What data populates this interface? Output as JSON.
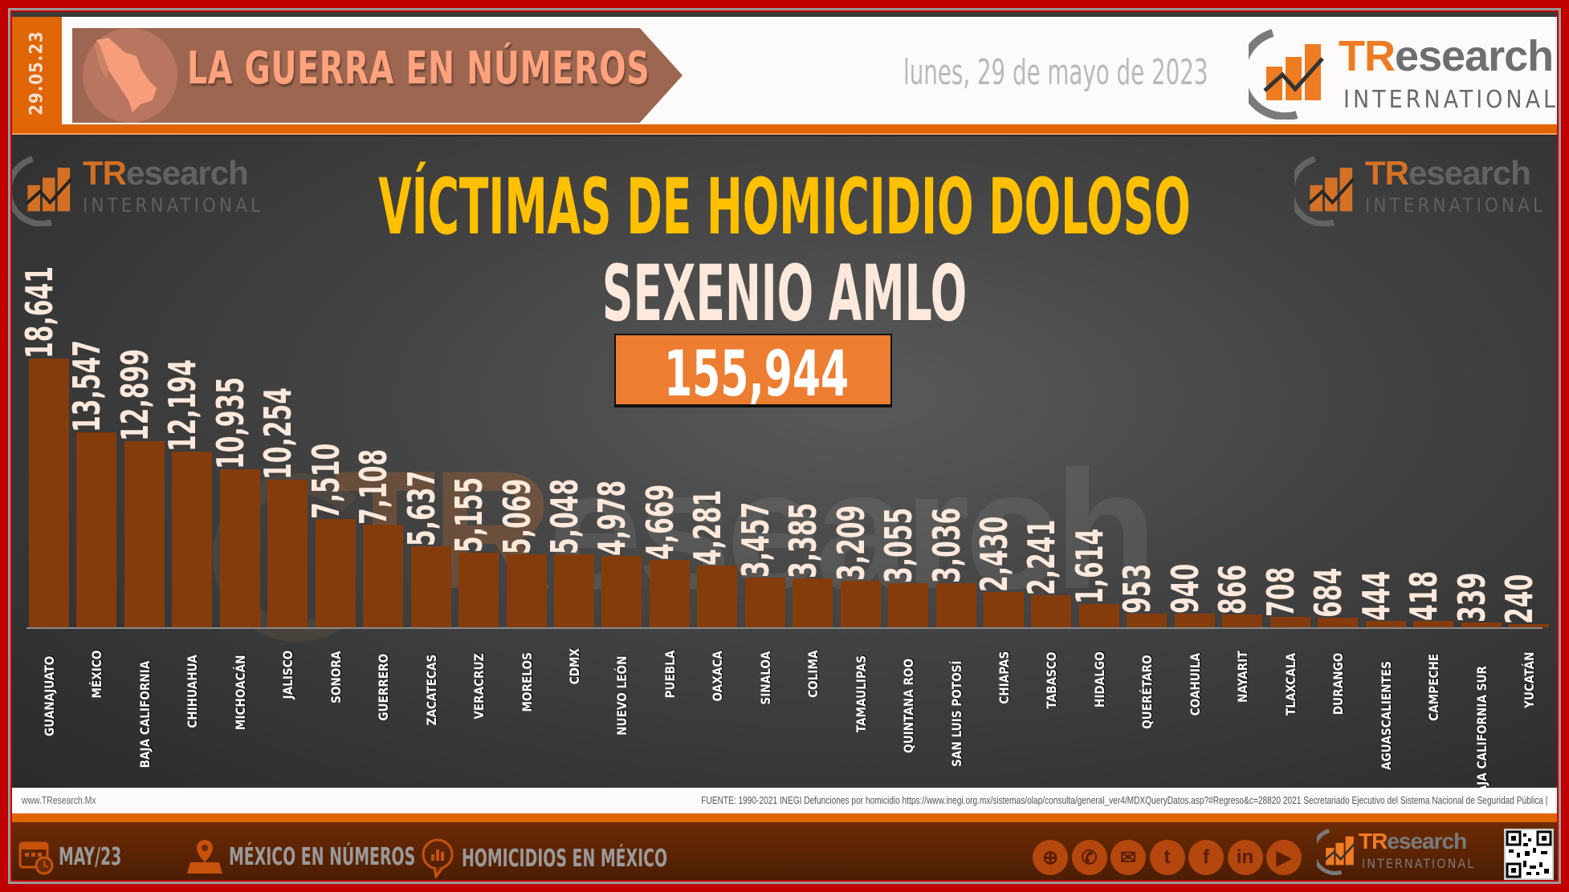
{
  "header": {
    "date_strip": "29.05.23",
    "banner_title": "LA GUERRA EN NÚMEROS",
    "date_long": "lunes, 29 de mayo de 2023",
    "logo": {
      "brand_tr": "TR",
      "brand_rest": "esearch",
      "sub": "INTERNATIONAL"
    }
  },
  "chart_area": {
    "title": "VÍCTIMAS DE HOMICIDIO DOLOSO",
    "subtitle": "SEXENIO AMLO",
    "total": "155,944",
    "watermark_logo_left": {
      "brand_tr": "TR",
      "brand_rest": "esearch",
      "sub": "INTERNATIONAL"
    },
    "watermark_logo_right": {
      "brand_tr": "TR",
      "brand_rest": "esearch",
      "sub": "INTERNATIONAL"
    },
    "watermark_big": {
      "tr": "TR",
      "rest": "esearch"
    }
  },
  "chart_data": {
    "type": "bar",
    "title": "VÍCTIMAS DE HOMICIDIO DOLOSO",
    "subtitle": "SEXENIO AMLO",
    "total": 155944,
    "xlabel": "",
    "ylabel": "",
    "grid": false,
    "legend": "none",
    "bar_color": "#843c0c",
    "categories": [
      "GUANAJUATO",
      "MÉXICO",
      "BAJA CALIFORNIA",
      "CHIHUAHUA",
      "MICHOACÁN",
      "JALISCO",
      "SONORA",
      "GUERRERO",
      "ZACATECAS",
      "VERACRUZ",
      "MORELOS",
      "CDMX",
      "NUEVO LEÓN",
      "PUEBLA",
      "OAXACA",
      "SINALOA",
      "COLIMA",
      "TAMAULIPAS",
      "QUINTANA ROO",
      "SAN LUIS POTOSÍ",
      "CHIAPAS",
      "TABASCO",
      "HIDALGO",
      "QUERÉTARO",
      "COAHUILA",
      "NAYARIT",
      "TLAXCALA",
      "DURANGO",
      "AGUASCALIENTES",
      "CAMPECHE",
      "BAJA CALIFORNIA SUR",
      "YUCATÁN"
    ],
    "values": [
      18641,
      13547,
      12899,
      12194,
      10935,
      10254,
      7510,
      7108,
      5637,
      5155,
      5069,
      5048,
      4978,
      4669,
      4281,
      3457,
      3385,
      3209,
      3055,
      3036,
      2430,
      2241,
      1614,
      953,
      940,
      866,
      708,
      684,
      444,
      418,
      339,
      240
    ],
    "labels": [
      "18,641",
      "13,547",
      "12,899",
      "12,194",
      "10,935",
      "10,254",
      "7,510",
      "7,108",
      "5,637",
      "5,155",
      "5,069",
      "5,048",
      "4,978",
      "4,669",
      "4,281",
      "3,457",
      "3,385",
      "3,209",
      "3,055",
      "3,036",
      "2,430",
      "2,241",
      "1,614",
      "953",
      "940",
      "866",
      "708",
      "684",
      "444",
      "418",
      "339",
      "240"
    ]
  },
  "source": {
    "site": "www.TResearch.Mx",
    "fuente": "FUENTE: 1990-2021 INEGI Defunciones por homicidio https://www.inegi.org.mx/sistemas/olap/consulta/general_ver4/MDXQueryDatos.asp?#Regreso&c=28820   2021 Secretariado Ejecutivo del Sistema Nacional de Seguridad Pública |"
  },
  "footer": {
    "items": [
      {
        "icon": "calendar-clock-icon",
        "label": "MAY/23"
      },
      {
        "icon": "map-pin-icon",
        "label": "MÉXICO EN NÚMEROS"
      },
      {
        "icon": "chat-chart-icon",
        "label": "HOMICIDIOS EN MÉXICO"
      }
    ],
    "social": [
      {
        "icon": "globe-icon",
        "glyph": "⊕"
      },
      {
        "icon": "phone-icon",
        "glyph": "✆"
      },
      {
        "icon": "mail-icon",
        "glyph": "✉"
      },
      {
        "icon": "twitter-icon",
        "glyph": "t"
      },
      {
        "icon": "facebook-icon",
        "glyph": "f"
      },
      {
        "icon": "linkedin-icon",
        "glyph": "in"
      },
      {
        "icon": "youtube-icon",
        "glyph": "▶"
      }
    ],
    "logo": {
      "brand_tr": "TR",
      "brand_rest": "esearch",
      "sub": "INTERNATIONAL"
    }
  },
  "colors": {
    "frame": "#c00000",
    "accent_orange": "#e06506",
    "total_box": "#ed7d31",
    "title_yellow": "#ffc000",
    "bar": "#843c0c",
    "value_text": "#fde9dc"
  }
}
